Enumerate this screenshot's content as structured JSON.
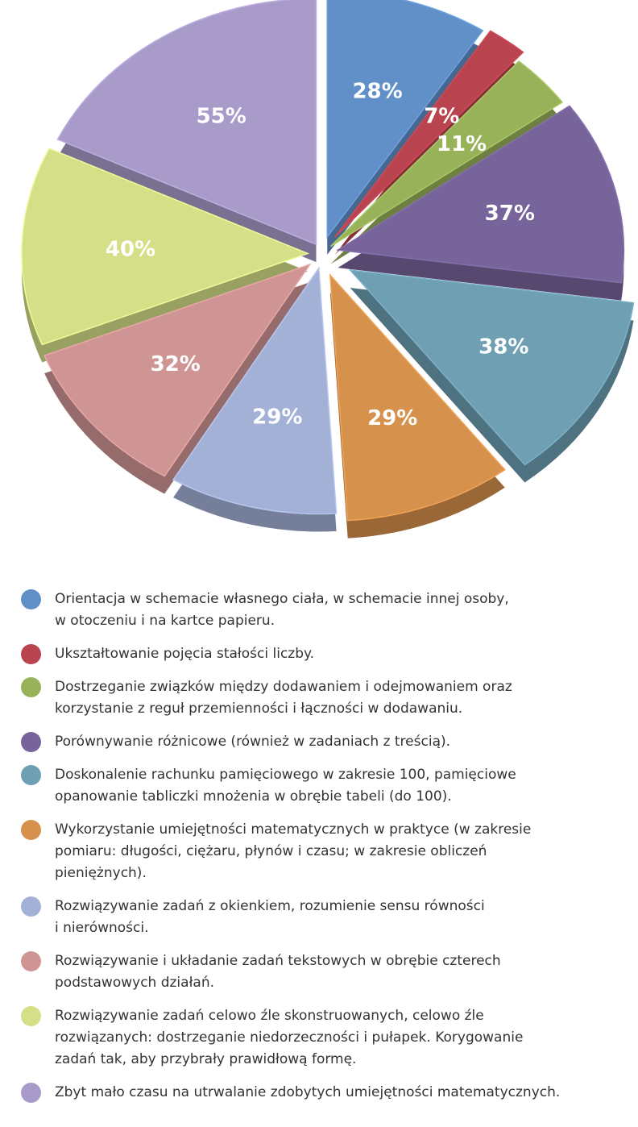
{
  "chart_data": {
    "type": "pie",
    "title": "",
    "legend_position": "bottom",
    "slices": [
      {
        "label": "28%",
        "value": 28,
        "color": "#6190c8",
        "legend": "Orientacja w schemacie własnego ciała, w schemacie innej osoby,\nw otoczeniu i na kartce papieru."
      },
      {
        "label": "7%",
        "value": 7,
        "color": "#b9434f",
        "legend": "Ukształtowanie pojęcia stałości liczby."
      },
      {
        "label": "11%",
        "value": 11,
        "color": "#98b25a",
        "legend": "Dostrzeganie związków między dodawaniem i odejmowaniem oraz\nkorzystanie z reguł przemienności i łączności w dodawaniu."
      },
      {
        "label": "37%",
        "value": 37,
        "color": "#77649a",
        "legend": "Porównywanie różnicowe (również w zadaniach z treścią)."
      },
      {
        "label": "38%",
        "value": 38,
        "color": "#6e9fb3",
        "legend": "Doskonalenie rachunku pamięciowego w zakresie 100, pamięciowe\nopanowanie tabliczki mnożenia w obrębie tabeli (do 100)."
      },
      {
        "label": "29%",
        "value": 29,
        "color": "#d6914c",
        "legend": "Wykorzystanie umiejętności matematycznych w praktyce (w zakresie\npomiaru: długości, ciężaru, płynów i czasu; w zakresie obliczeń\npieniężnych)."
      },
      {
        "label": "29%",
        "value": 29,
        "color": "#a3b1d6",
        "legend": "Rozwiązywanie zadań z okienkiem, rozumienie sensu równości\ni nierówności."
      },
      {
        "label": "32%",
        "value": 32,
        "color": "#cf9594",
        "legend": "Rozwiązywanie i układanie zadań tekstowych w obrębie czterech\npodstawowych działań."
      },
      {
        "label": "40%",
        "value": 40,
        "color": "#d5df88",
        "legend": "Rozwiązywanie zadań celowo źle skonstruowanych, celowo źle\nrozwiązanych: dostrzeganie niedorzeczności i pułapek. Korygowanie\nzadań tak, aby przybrały  prawidłową formę."
      },
      {
        "label": "55%",
        "value": 55,
        "color": "#a99bc9",
        "legend": "Zbyt mało czasu na utrwalanie zdobytych umiejętności matematycznych."
      }
    ]
  }
}
